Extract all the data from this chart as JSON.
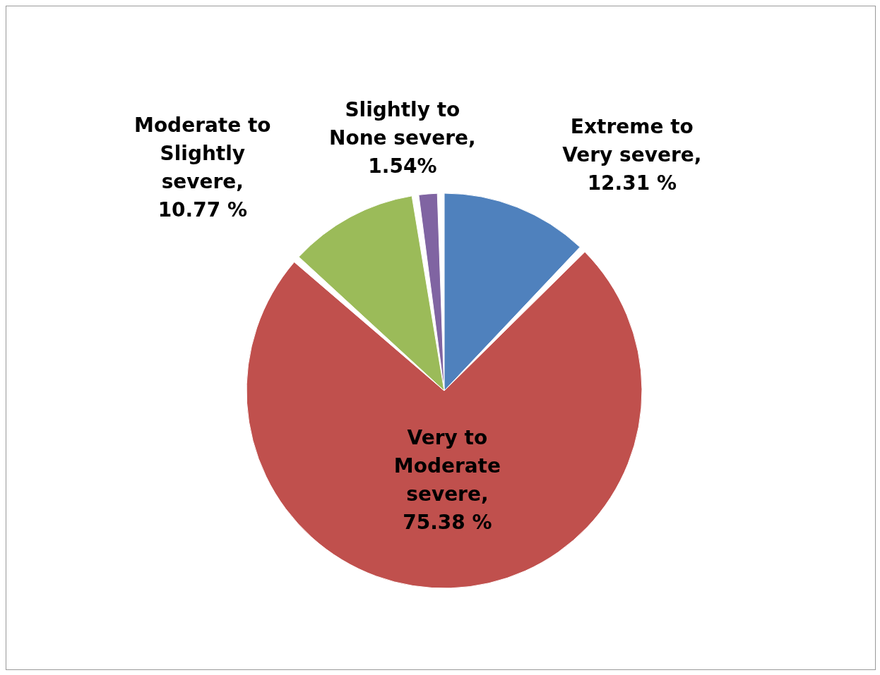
{
  "chart_data": {
    "type": "pie",
    "categories": [
      "Extreme to Very severe",
      "Very to Moderate severe",
      "Moderate to Slightly severe",
      "Slightly to None severe"
    ],
    "values": [
      12.31,
      75.38,
      10.77,
      1.54
    ],
    "value_labels": [
      ", 12.31 %",
      ", 75.38 %",
      ", 10.77 %",
      ", 1.54%"
    ],
    "colors": [
      "#4f81bd",
      "#c0504d",
      "#9bbb59",
      "#8064a2"
    ],
    "legend": false
  }
}
